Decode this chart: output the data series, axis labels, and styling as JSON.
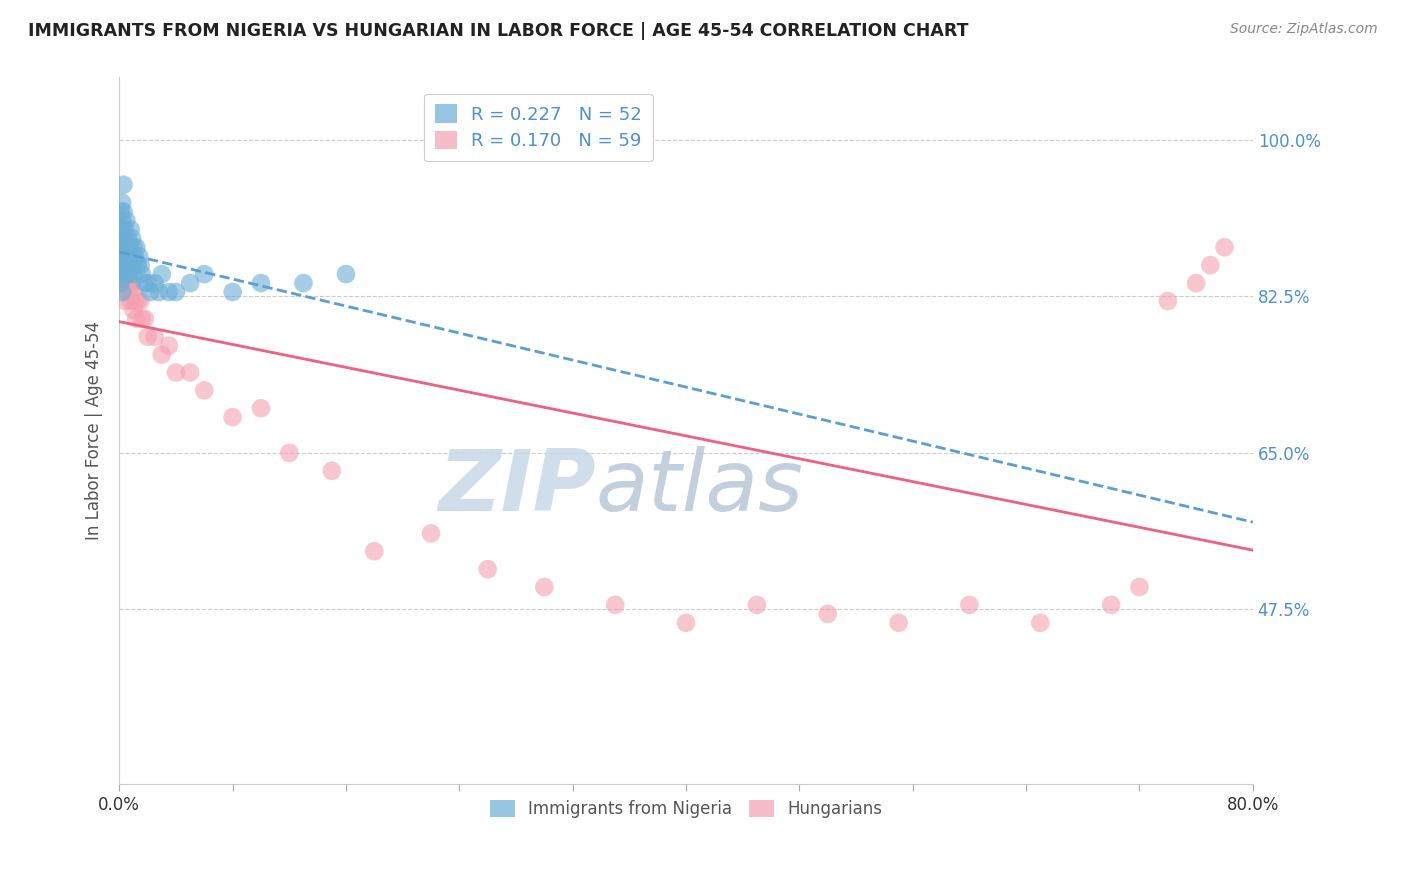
{
  "title": "IMMIGRANTS FROM NIGERIA VS HUNGARIAN IN LABOR FORCE | AGE 45-54 CORRELATION CHART",
  "source": "Source: ZipAtlas.com",
  "ylabel": "In Labor Force | Age 45-54",
  "ytick_labels": [
    "100.0%",
    "82.5%",
    "65.0%",
    "47.5%"
  ],
  "ytick_values": [
    1.0,
    0.825,
    0.65,
    0.475
  ],
  "xmin": 0.0,
  "xmax": 0.8,
  "ymin": 0.28,
  "ymax": 1.07,
  "nigeria_R": 0.227,
  "nigeria_N": 52,
  "hungarian_R": 0.17,
  "hungarian_N": 59,
  "nigeria_color": "#6aaed6",
  "hungarian_color": "#f4a0b0",
  "nigeria_line_color": "#5a9fd4",
  "hungarian_line_color": "#f06080",
  "nigeria_x": [
    0.001,
    0.001,
    0.001,
    0.001,
    0.001,
    0.001,
    0.002,
    0.002,
    0.002,
    0.002,
    0.002,
    0.002,
    0.003,
    0.003,
    0.003,
    0.003,
    0.004,
    0.004,
    0.004,
    0.005,
    0.005,
    0.005,
    0.006,
    0.006,
    0.007,
    0.007,
    0.008,
    0.008,
    0.009,
    0.009,
    0.01,
    0.01,
    0.011,
    0.012,
    0.013,
    0.014,
    0.015,
    0.016,
    0.018,
    0.02,
    0.022,
    0.025,
    0.028,
    0.03,
    0.035,
    0.04,
    0.05,
    0.06,
    0.08,
    0.1,
    0.13,
    0.16
  ],
  "nigeria_y": [
    0.92,
    0.9,
    0.88,
    0.87,
    0.85,
    0.84,
    0.93,
    0.91,
    0.89,
    0.87,
    0.86,
    0.83,
    0.95,
    0.92,
    0.89,
    0.86,
    0.9,
    0.88,
    0.85,
    0.91,
    0.88,
    0.85,
    0.89,
    0.86,
    0.88,
    0.85,
    0.9,
    0.87,
    0.89,
    0.86,
    0.88,
    0.85,
    0.87,
    0.88,
    0.86,
    0.87,
    0.86,
    0.85,
    0.84,
    0.84,
    0.83,
    0.84,
    0.83,
    0.85,
    0.83,
    0.83,
    0.84,
    0.85,
    0.83,
    0.84,
    0.84,
    0.85
  ],
  "hungarian_x": [
    0.001,
    0.001,
    0.001,
    0.002,
    0.002,
    0.002,
    0.002,
    0.003,
    0.003,
    0.003,
    0.004,
    0.004,
    0.004,
    0.005,
    0.005,
    0.005,
    0.006,
    0.006,
    0.007,
    0.007,
    0.008,
    0.008,
    0.009,
    0.01,
    0.01,
    0.011,
    0.012,
    0.013,
    0.015,
    0.016,
    0.018,
    0.02,
    0.025,
    0.03,
    0.035,
    0.04,
    0.05,
    0.06,
    0.08,
    0.1,
    0.12,
    0.15,
    0.18,
    0.22,
    0.26,
    0.3,
    0.35,
    0.4,
    0.45,
    0.5,
    0.55,
    0.6,
    0.65,
    0.7,
    0.72,
    0.74,
    0.76,
    0.77,
    0.78
  ],
  "hungarian_y": [
    0.88,
    0.86,
    0.84,
    0.9,
    0.88,
    0.86,
    0.84,
    0.88,
    0.86,
    0.84,
    0.86,
    0.84,
    0.82,
    0.88,
    0.86,
    0.84,
    0.86,
    0.84,
    0.85,
    0.83,
    0.84,
    0.82,
    0.84,
    0.83,
    0.81,
    0.82,
    0.8,
    0.82,
    0.82,
    0.8,
    0.8,
    0.78,
    0.78,
    0.76,
    0.77,
    0.74,
    0.74,
    0.72,
    0.69,
    0.7,
    0.65,
    0.63,
    0.54,
    0.56,
    0.52,
    0.5,
    0.48,
    0.46,
    0.48,
    0.47,
    0.46,
    0.48,
    0.46,
    0.48,
    0.5,
    0.82,
    0.84,
    0.86,
    0.88
  ],
  "background_color": "#ffffff",
  "grid_color": "#cccccc",
  "watermark_zip": "ZIP",
  "watermark_atlas": "atlas",
  "watermark_color_zip": "#c8d8e8",
  "watermark_color_atlas": "#b8c8d8"
}
